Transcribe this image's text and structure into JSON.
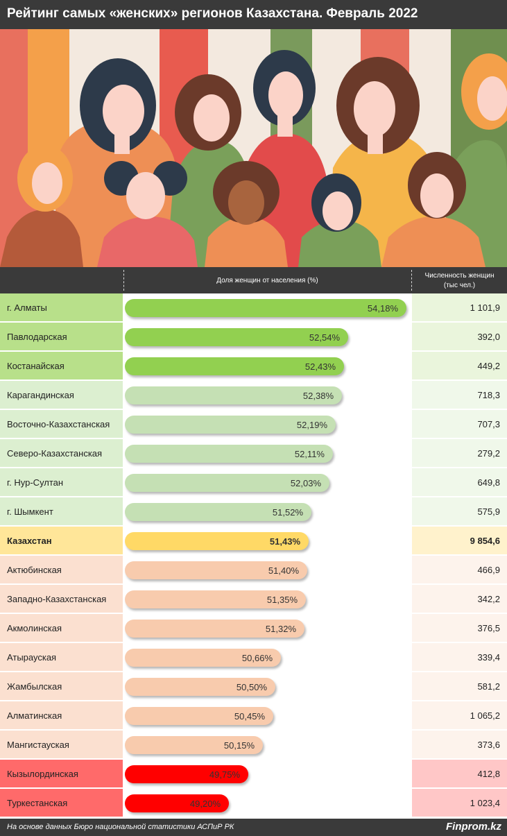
{
  "title": "Рейтинг самых «женских» регионов Казахстана. Февраль 2022",
  "header": {
    "share_label": "Доля женщин от населения (%)",
    "count_label_line1": "Численность женщин",
    "count_label_line2": "(тыс чел.)"
  },
  "colors": {
    "title_bar": "#3a3a3a",
    "top_bar": "#92d050",
    "top_name_bg": "#b8e08a",
    "top_num_bg": "#eaf5dc",
    "mid_bar": "#c5e0b4",
    "mid_name_bg": "#dcefd0",
    "mid_num_bg": "#f0f8ea",
    "total_bar": "#ffd966",
    "total_name_bg": "#ffe699",
    "total_num_bg": "#fff2cc",
    "low_bar": "#f8cbad",
    "low_name_bg": "#fbe0d0",
    "low_num_bg": "#fdf3ec",
    "bottom_bar": "#ff0000",
    "bottom_name_bg": "#ff6a6a",
    "bottom_num_bg": "#ffc7c7"
  },
  "chart_data": {
    "type": "bar",
    "orientation": "horizontal",
    "title": "Рейтинг самых «женских» регионов Казахстана. Февраль 2022",
    "series": [
      {
        "name": "Доля женщин от населения (%)",
        "values": [
          54.18,
          52.54,
          52.43,
          52.38,
          52.19,
          52.11,
          52.03,
          51.52,
          51.43,
          51.4,
          51.35,
          51.32,
          50.66,
          50.5,
          50.45,
          50.15,
          49.75,
          49.2
        ]
      },
      {
        "name": "Численность женщин (тыс чел.)",
        "values": [
          1101.9,
          392.0,
          449.2,
          718.3,
          707.3,
          279.2,
          649.8,
          575.9,
          9854.6,
          466.9,
          342.2,
          376.5,
          339.4,
          581.2,
          1065.2,
          373.6,
          412.8,
          1023.4
        ]
      }
    ],
    "rows": [
      {
        "region": "г. Алматы",
        "share_label": "54,18%",
        "share": 54.18,
        "count_label": "1 101,9",
        "group": "top"
      },
      {
        "region": "Павлодарская",
        "share_label": "52,54%",
        "share": 52.54,
        "count_label": "392,0",
        "group": "top"
      },
      {
        "region": "Костанайская",
        "share_label": "52,43%",
        "share": 52.43,
        "count_label": "449,2",
        "group": "top"
      },
      {
        "region": "Карагандинская",
        "share_label": "52,38%",
        "share": 52.38,
        "count_label": "718,3",
        "group": "mid"
      },
      {
        "region": "Восточно-Казахстанская",
        "share_label": "52,19%",
        "share": 52.19,
        "count_label": "707,3",
        "group": "mid"
      },
      {
        "region": "Северо-Казахстанская",
        "share_label": "52,11%",
        "share": 52.11,
        "count_label": "279,2",
        "group": "mid"
      },
      {
        "region": "г. Нур-Султан",
        "share_label": "52,03%",
        "share": 52.03,
        "count_label": "649,8",
        "group": "mid"
      },
      {
        "region": "г. Шымкент",
        "share_label": "51,52%",
        "share": 51.52,
        "count_label": "575,9",
        "group": "mid"
      },
      {
        "region": "Казахстан",
        "share_label": "51,43%",
        "share": 51.43,
        "count_label": "9 854,6",
        "group": "total"
      },
      {
        "region": "Актюбинская",
        "share_label": "51,40%",
        "share": 51.4,
        "count_label": "466,9",
        "group": "low"
      },
      {
        "region": "Западно-Казахстанская",
        "share_label": "51,35%",
        "share": 51.35,
        "count_label": "342,2",
        "group": "low"
      },
      {
        "region": "Акмолинская",
        "share_label": "51,32%",
        "share": 51.32,
        "count_label": "376,5",
        "group": "low"
      },
      {
        "region": "Атырауская",
        "share_label": "50,66%",
        "share": 50.66,
        "count_label": "339,4",
        "group": "low"
      },
      {
        "region": "Жамбылская",
        "share_label": "50,50%",
        "share": 50.5,
        "count_label": "581,2",
        "group": "low"
      },
      {
        "region": "Алматинская",
        "share_label": "50,45%",
        "share": 50.45,
        "count_label": "1 065,2",
        "group": "low"
      },
      {
        "region": "Мангистауская",
        "share_label": "50,15%",
        "share": 50.15,
        "count_label": "373,6",
        "group": "low"
      },
      {
        "region": "Кызылординская",
        "share_label": "49,75%",
        "share": 49.75,
        "count_label": "412,8",
        "group": "bottom"
      },
      {
        "region": "Туркестанская",
        "share_label": "49,20%",
        "share": 49.2,
        "count_label": "1 023,4",
        "group": "bottom"
      }
    ]
  },
  "footer": {
    "source": "На основе данных Бюро национальной статистики АСПиР РК",
    "brand": "Finprom.kz"
  }
}
